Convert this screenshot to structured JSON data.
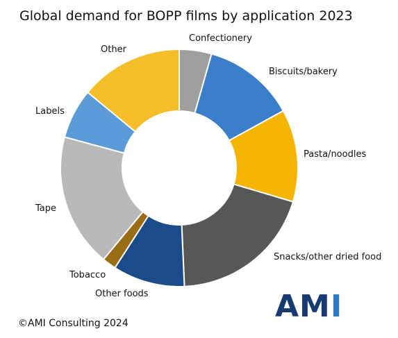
{
  "chart_data": {
    "type": "pie",
    "variant": "donut",
    "title": "Global demand for BOPP films by application 2023",
    "start_angle_deg": 0,
    "direction": "clockwise",
    "categories": [
      "Confectionery",
      "Biscuits/bakery",
      "Pasta/noodles",
      "Snacks/other dried food",
      "Other foods",
      "Tobacco",
      "Tape",
      "Labels",
      "Other"
    ],
    "values": [
      4.4,
      12.6,
      12.6,
      19.7,
      9.8,
      1.9,
      18.2,
      6.8,
      14.0
    ],
    "colors": [
      "#9e9e9e",
      "#3a7dc9",
      "#f5b400",
      "#575757",
      "#1b4b8a",
      "#9a6d14",
      "#b9b9b9",
      "#5b9bd8",
      "#f6bd2a"
    ],
    "legend": "none",
    "labels_outside": true
  },
  "footer": {
    "copyright": "©AMI Consulting 2024",
    "logo_text_a": "AM",
    "logo_text_b": "I"
  }
}
